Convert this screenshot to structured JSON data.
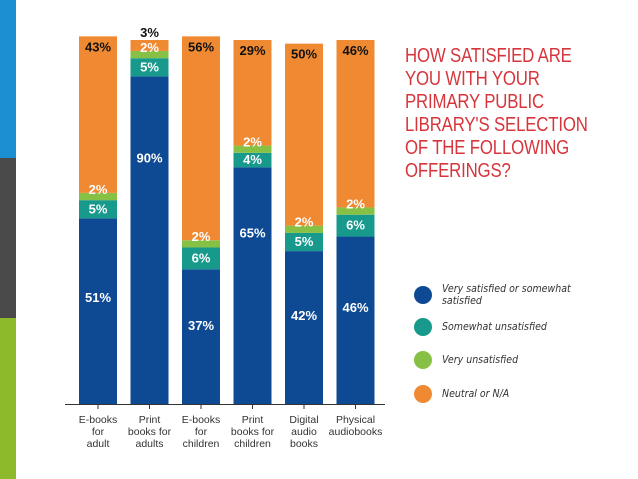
{
  "accent_colors": [
    "#1b8fd1",
    "#4a4a4a",
    "#8cba2a"
  ],
  "question": {
    "text": "HOW SATISFIED ARE YOU WITH YOUR PRIMARY PUBLIC LIBRARY'S SELECTION OF THE FOLLOWING OFFERINGS?",
    "color": "#d7353c"
  },
  "legend": [
    {
      "label": "Very satisfied or somewhat satisfied",
      "color": "#0e4a94"
    },
    {
      "label": "Somewhat unsatisfied",
      "color": "#179a8c"
    },
    {
      "label": "Very unsatisfied",
      "color": "#86c146"
    },
    {
      "label": "Neutral or N/A",
      "color": "#f08a32"
    }
  ],
  "chart_data": {
    "type": "bar",
    "stacked": true,
    "title": "HOW SATISFIED ARE YOU WITH YOUR PRIMARY PUBLIC LIBRARY'S SELECTION OF THE FOLLOWING OFFERINGS?",
    "categories": [
      "E-books for adult",
      "Print books for adults",
      "E-books for children",
      "Print books for children",
      "Digital audio books",
      "Physical audiobooks"
    ],
    "category_lines": [
      [
        "E-books",
        "for",
        "adult"
      ],
      [
        "Print",
        "books for",
        "adults"
      ],
      [
        "E-books",
        "for",
        "children"
      ],
      [
        "Print",
        "books for",
        "children"
      ],
      [
        "Digital",
        "audio",
        "books"
      ],
      [
        "Physical",
        "audiobooks"
      ]
    ],
    "series": [
      {
        "name": "Very satisfied or somewhat satisfied",
        "color": "#0e4a94",
        "values": [
          51,
          90,
          37,
          65,
          42,
          46
        ]
      },
      {
        "name": "Somewhat unsatisfied",
        "color": "#179a8c",
        "values": [
          5,
          5,
          6,
          4,
          5,
          6
        ]
      },
      {
        "name": "Very unsatisfied",
        "color": "#86c146",
        "values": [
          2,
          2,
          2,
          2,
          2,
          2
        ]
      },
      {
        "name": "Neutral or N/A",
        "color": "#f08a32",
        "values": [
          43,
          3,
          56,
          29,
          50,
          46
        ]
      }
    ],
    "ylim": [
      0,
      100
    ],
    "xlabel": "",
    "ylabel": ""
  }
}
